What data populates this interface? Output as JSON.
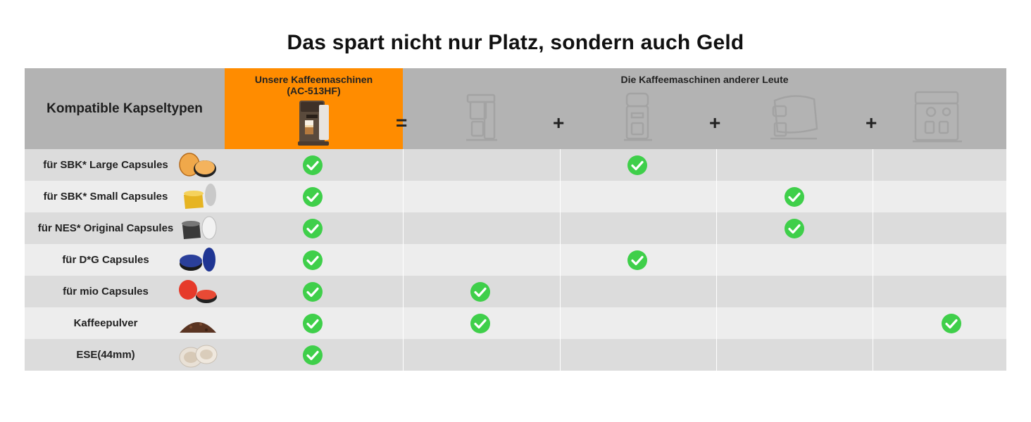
{
  "title": "Das spart nicht nur Platz, sondern auch Geld",
  "header": {
    "label": "Kompatible Kapseltypen",
    "ours_line1": "Unsere Kaffeemaschinen",
    "ours_line2": "(AC-513HF)",
    "others": "Die Kaffeemaschinen anderer Leute",
    "equals": "=",
    "plus": "+"
  },
  "rows": [
    {
      "label": "für SBK* Large Capsules",
      "capsule_icon": "sbk-large-capsule-icon",
      "checks": [
        true,
        false,
        true,
        false,
        false
      ]
    },
    {
      "label": "für SBK* Small Capsules",
      "capsule_icon": "sbk-small-capsule-icon",
      "checks": [
        true,
        false,
        false,
        true,
        false
      ]
    },
    {
      "label": "für NES* Original Capsules",
      "capsule_icon": "nes-capsule-icon",
      "checks": [
        true,
        false,
        false,
        true,
        false
      ]
    },
    {
      "label": "für D*G Capsules",
      "capsule_icon": "dg-capsule-icon",
      "checks": [
        true,
        false,
        true,
        false,
        false
      ]
    },
    {
      "label": "für mio Capsules",
      "capsule_icon": "mio-capsule-icon",
      "checks": [
        true,
        true,
        false,
        false,
        false
      ]
    },
    {
      "label": "Kaffeepulver",
      "capsule_icon": "coffee-powder-icon",
      "checks": [
        true,
        true,
        false,
        false,
        true
      ]
    },
    {
      "label": "ESE(44mm)",
      "capsule_icon": "ese-pod-icon",
      "checks": [
        true,
        false,
        false,
        false,
        false
      ]
    }
  ],
  "colors": {
    "accent": "#ff8c00",
    "header_gray": "#b3b3b3",
    "row_dark": "#dcdcdc",
    "row_light": "#ededed",
    "check_green": "#3fcf4a"
  }
}
